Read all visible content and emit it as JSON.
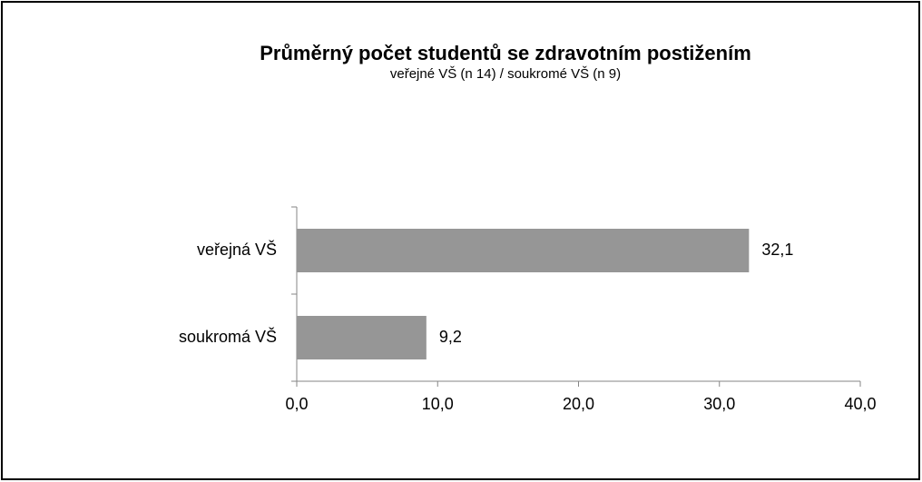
{
  "chart_data": {
    "type": "barh",
    "title": "Průměrný počet studentů se zdravotním postižením",
    "subtitle": "veřejné VŠ (n 14) / soukromé VŠ (n 9)",
    "categories": [
      "veřejná VŠ",
      "soukromá VŠ"
    ],
    "values": [
      32.1,
      9.2
    ],
    "value_labels": [
      "32,1",
      "9,2"
    ],
    "color": "#969696",
    "xlim": [
      0,
      40
    ],
    "xticks": [
      {
        "value": 0,
        "label": "0,0"
      },
      {
        "value": 10,
        "label": "10,0"
      },
      {
        "value": 20,
        "label": "20,0"
      },
      {
        "value": 30,
        "label": "30,0"
      },
      {
        "value": 40,
        "label": "40,0"
      }
    ],
    "grid": false
  }
}
